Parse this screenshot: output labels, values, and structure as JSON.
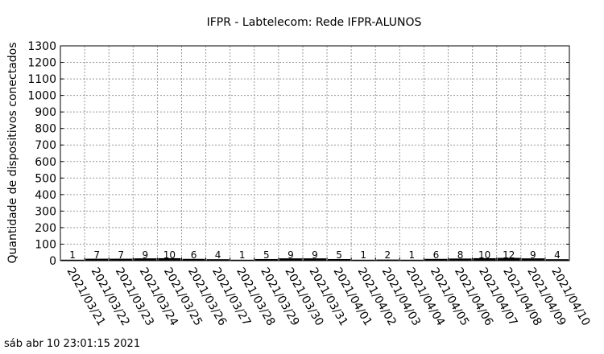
{
  "chart_data": {
    "type": "bar",
    "title": "IFPR - Labtelecom: Rede IFPR-ALUNOS",
    "ylabel": "Quantidade de dispositivos conectados",
    "xlabel": "",
    "ylim": [
      0,
      1300
    ],
    "yticks": [
      0,
      100,
      200,
      300,
      400,
      500,
      600,
      700,
      800,
      900,
      1000,
      1100,
      1200,
      1300
    ],
    "grid": true,
    "categories": [
      "2021/03/21",
      "2021/03/22",
      "2021/03/23",
      "2021/03/24",
      "2021/03/25",
      "2021/03/26",
      "2021/03/27",
      "2021/03/28",
      "2021/03/29",
      "2021/03/30",
      "2021/03/31",
      "2021/04/01",
      "2021/04/02",
      "2021/04/03",
      "2021/04/04",
      "2021/04/05",
      "2021/04/06",
      "2021/04/07",
      "2021/04/08",
      "2021/04/09",
      "2021/04/10"
    ],
    "values": [
      1,
      7,
      7,
      9,
      10,
      6,
      4,
      1,
      5,
      9,
      9,
      5,
      1,
      2,
      1,
      6,
      8,
      10,
      12,
      9,
      4
    ],
    "bar_color": "#000000"
  },
  "footer": {
    "timestamp": "sáb abr 10 23:01:15 2021"
  }
}
